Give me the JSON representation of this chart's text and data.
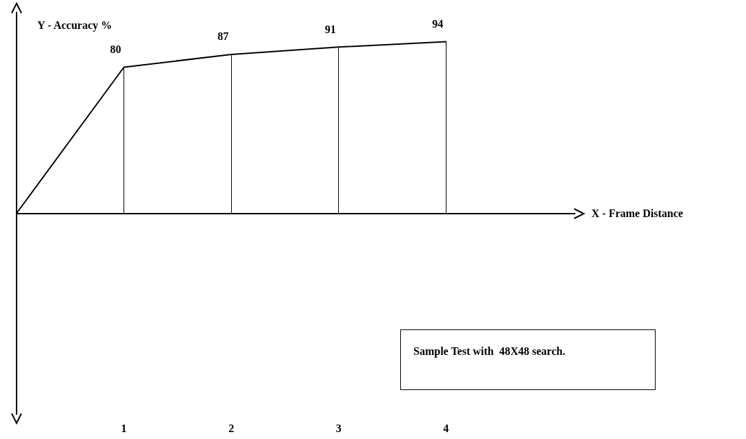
{
  "chart_data": {
    "type": "line",
    "xlabel": "X - Frame Distance",
    "ylabel": "Y - Accuracy %",
    "x": [
      0,
      1,
      2,
      3,
      4
    ],
    "values": [
      0,
      80,
      87,
      91,
      94
    ],
    "value_labels": [
      null,
      "80",
      "87",
      "91",
      "94"
    ],
    "color": "#000000",
    "xlim": [
      0,
      5.2
    ],
    "xticks": [
      1,
      2,
      3,
      4
    ],
    "ylim": [
      -110,
      110
    ],
    "tick_labels": "x",
    "grid": false,
    "marker": "none",
    "line_style": "solid",
    "annotations": [
      "Sample Test with  48X48 search."
    ]
  }
}
